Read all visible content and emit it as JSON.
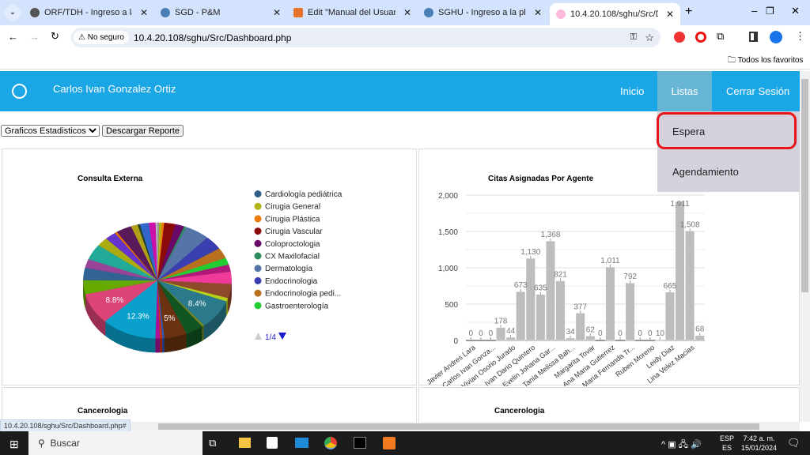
{
  "browser": {
    "tabs": [
      {
        "title": "ORF/TDH - Ingreso a la plata",
        "color": "#555"
      },
      {
        "title": "SGD - P&M",
        "color": "#4a7fb5"
      },
      {
        "title": "Edit \"Manual del Usuario isa",
        "color": "#e8742a"
      },
      {
        "title": "SGHU - Ingreso a la platafor",
        "color": "#4a7fb5"
      },
      {
        "title": "10.4.20.108/sghu/Src/Dashb",
        "color": "#f0a"
      }
    ],
    "security": "No seguro",
    "url": "10.4.20.108/sghu/Src/Dashboard.php",
    "bookmarks_label": "Todos los favoritos",
    "status_url": "10.4.20.108/sghu/Src/Dashboard.php#"
  },
  "nav": {
    "user": "Carlos Ivan Gonzalez Ortiz",
    "items": [
      "Inicio",
      "Listas",
      "Cerrar Sesión"
    ],
    "dropdown": [
      "Espera",
      "Agendamiento"
    ]
  },
  "controls": {
    "select_value": "Graficos Estadisticos",
    "download": "Descargar Reporte"
  },
  "panels": {
    "bottom_left_title": "Cancerologia",
    "bottom_right_title": "Cancerologia"
  },
  "chart_data": [
    {
      "type": "pie",
      "title": "Consulta Externa",
      "legend_page": "1/4",
      "legend": [
        {
          "name": "Cardiología pediátrica",
          "color": "#2e5f8a"
        },
        {
          "name": "Cirugia General",
          "color": "#b0b418"
        },
        {
          "name": "Cirugia Plástica",
          "color": "#ef7a0c"
        },
        {
          "name": "Cirugia Vascular",
          "color": "#8b0a0a"
        },
        {
          "name": "Coloproctologia",
          "color": "#6a0a68"
        },
        {
          "name": "CX Maxilofacial",
          "color": "#2e8b5e"
        },
        {
          "name": "Dermatología",
          "color": "#5574a8"
        },
        {
          "name": "Endocrinologia",
          "color": "#3a3fb0"
        },
        {
          "name": "Endocrinologia pedi...",
          "color": "#b8701e"
        },
        {
          "name": "Gastroenterología",
          "color": "#22cc33"
        }
      ],
      "slices": [
        {
          "value": 0.4,
          "color": "#999"
        },
        {
          "value": 0.6,
          "color": "#b0b418"
        },
        {
          "value": 0.5,
          "color": "#ef7a0c"
        },
        {
          "value": 2.5,
          "color": "#8b0a0a"
        },
        {
          "value": 2,
          "color": "#6a0a68"
        },
        {
          "value": 0.5,
          "color": "#2e8b5e"
        },
        {
          "value": 5.5,
          "color": "#5574a8"
        },
        {
          "value": 4,
          "color": "#3a3fb0"
        },
        {
          "value": 3,
          "color": "#b8701e"
        },
        {
          "value": 2,
          "color": "#22cc33"
        },
        {
          "value": 2,
          "color": "#b0197a"
        },
        {
          "value": 3.5,
          "color": "#ee3a98"
        },
        {
          "value": 4,
          "color": "#8e4a2a"
        },
        {
          "value": 1,
          "color": "#b8d01c"
        },
        {
          "value": 8.4,
          "color": "#2a7a8c",
          "label": "8.4%"
        },
        {
          "value": 0.5,
          "color": "#7a8a1a"
        },
        {
          "value": 4,
          "color": "#115522"
        },
        {
          "value": 5,
          "color": "#6a3210",
          "label": "5%"
        },
        {
          "value": 0.5,
          "color": "#3355aa"
        },
        {
          "value": 0.5,
          "color": "#cc3311"
        },
        {
          "value": 1,
          "color": "#aa1199"
        },
        {
          "value": 12.3,
          "color": "#0aa0cc",
          "label": "12.3%"
        },
        {
          "value": 8.8,
          "color": "#dd4477",
          "label": "8.8%"
        },
        {
          "value": 4,
          "color": "#66aa00"
        },
        {
          "value": 3.5,
          "color": "#316395"
        },
        {
          "value": 2.5,
          "color": "#994499"
        },
        {
          "value": 4.5,
          "color": "#22aa99"
        },
        {
          "value": 2.5,
          "color": "#aaaa11"
        },
        {
          "value": 2.5,
          "color": "#6633cc"
        },
        {
          "value": 0.5,
          "color": "#e67300"
        },
        {
          "value": 3.5,
          "color": "#5a1a5a"
        },
        {
          "value": 1.5,
          "color": "#b0a01a"
        },
        {
          "value": 0.5,
          "color": "#224422"
        },
        {
          "value": 2,
          "color": "#3366cc"
        },
        {
          "value": 1.5,
          "color": "#cc11aa"
        },
        {
          "value": 0.4,
          "color": "#bbb"
        }
      ]
    },
    {
      "type": "bar",
      "title": "Citas Asignadas Por Agente",
      "ylim": [
        0,
        2000
      ],
      "yticks": [
        "0",
        "500",
        "1,000",
        "1,500",
        "2,000"
      ],
      "grid": true,
      "values": [
        0,
        0,
        0,
        178,
        44,
        673,
        1130,
        635,
        1368,
        821,
        34,
        377,
        62,
        0,
        1011,
        0,
        792,
        0,
        0,
        10,
        665,
        1911,
        1508,
        68
      ],
      "value_labels": [
        "0",
        "0",
        "0",
        "178",
        "44",
        "673",
        "1,130",
        "635",
        "1,368",
        "821",
        "34",
        "377",
        "62",
        "0",
        "1,011",
        "0",
        "792",
        "0",
        "0",
        "10",
        "665",
        "1,911",
        "1,508",
        "68"
      ],
      "xlabels": [
        "Javier Andres Lara",
        "Carlos Ivan Gonza...",
        "Vivian Osorio Jurado",
        "Ivan Dario Quintero",
        "Evelin Johana Gar...",
        "Tania Melissa Bah...",
        "Margarita Tovar",
        "Ana Maria Gutierrez",
        "Maria Fernanda Tr...",
        "Ruben Moreno",
        "Leidy Diaz",
        "Lina Velez Macias"
      ],
      "bar_color": "#bdbdbd"
    }
  ],
  "taskbar": {
    "search": "Buscar",
    "lang_top": "ESP",
    "lang_bottom": "ES",
    "time": "7:42 a. m.",
    "date": "15/01/2024"
  }
}
